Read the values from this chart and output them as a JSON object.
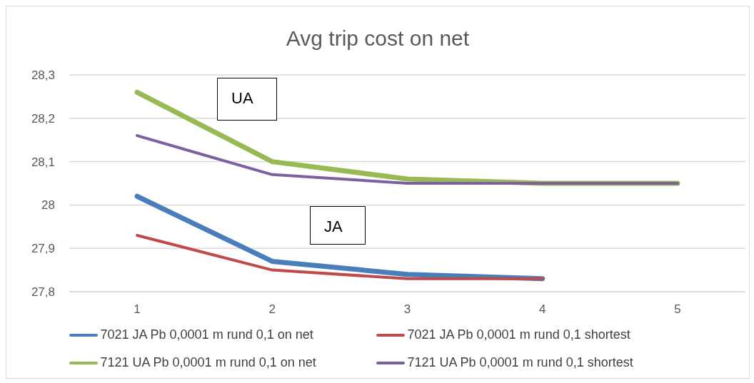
{
  "chart_data": {
    "type": "line",
    "title": "Avg trip cost on net",
    "categories": [
      "1",
      "2",
      "3",
      "4",
      "5"
    ],
    "series": [
      {
        "name": "7021 JA Pb 0,0001 m rund 0,1 on net",
        "color": "#4a7ebb",
        "values": [
          28.02,
          27.87,
          27.84,
          27.83,
          null
        ]
      },
      {
        "name": "7021 JA Pb 0,0001 m rund 0,1 shortest",
        "color": "#be4b48",
        "values": [
          27.93,
          27.85,
          27.83,
          27.83,
          null
        ]
      },
      {
        "name": "7121 UA Pb 0,0001 m rund 0,1 on net",
        "color": "#98b954",
        "values": [
          28.26,
          28.1,
          28.06,
          28.05,
          28.05
        ]
      },
      {
        "name": "7121 UA Pb 0,0001 m rund 0,1 shortest",
        "color": "#7d60a0",
        "values": [
          28.16,
          28.07,
          28.05,
          28.05,
          28.05
        ]
      }
    ],
    "ylim": [
      27.8,
      28.3
    ],
    "yticks": [
      {
        "value": 27.8,
        "label": "27,8"
      },
      {
        "value": 27.9,
        "label": "27,9"
      },
      {
        "value": 28,
        "label": "28"
      },
      {
        "value": 28.1,
        "label": "28,1"
      },
      {
        "value": 28.2,
        "label": "28,2"
      },
      {
        "value": 28.3,
        "label": "28,3"
      }
    ],
    "grid": "y",
    "legend": "bottom",
    "marker": "none",
    "line_style": "solid",
    "annotations": [
      "UA",
      "JA"
    ]
  }
}
